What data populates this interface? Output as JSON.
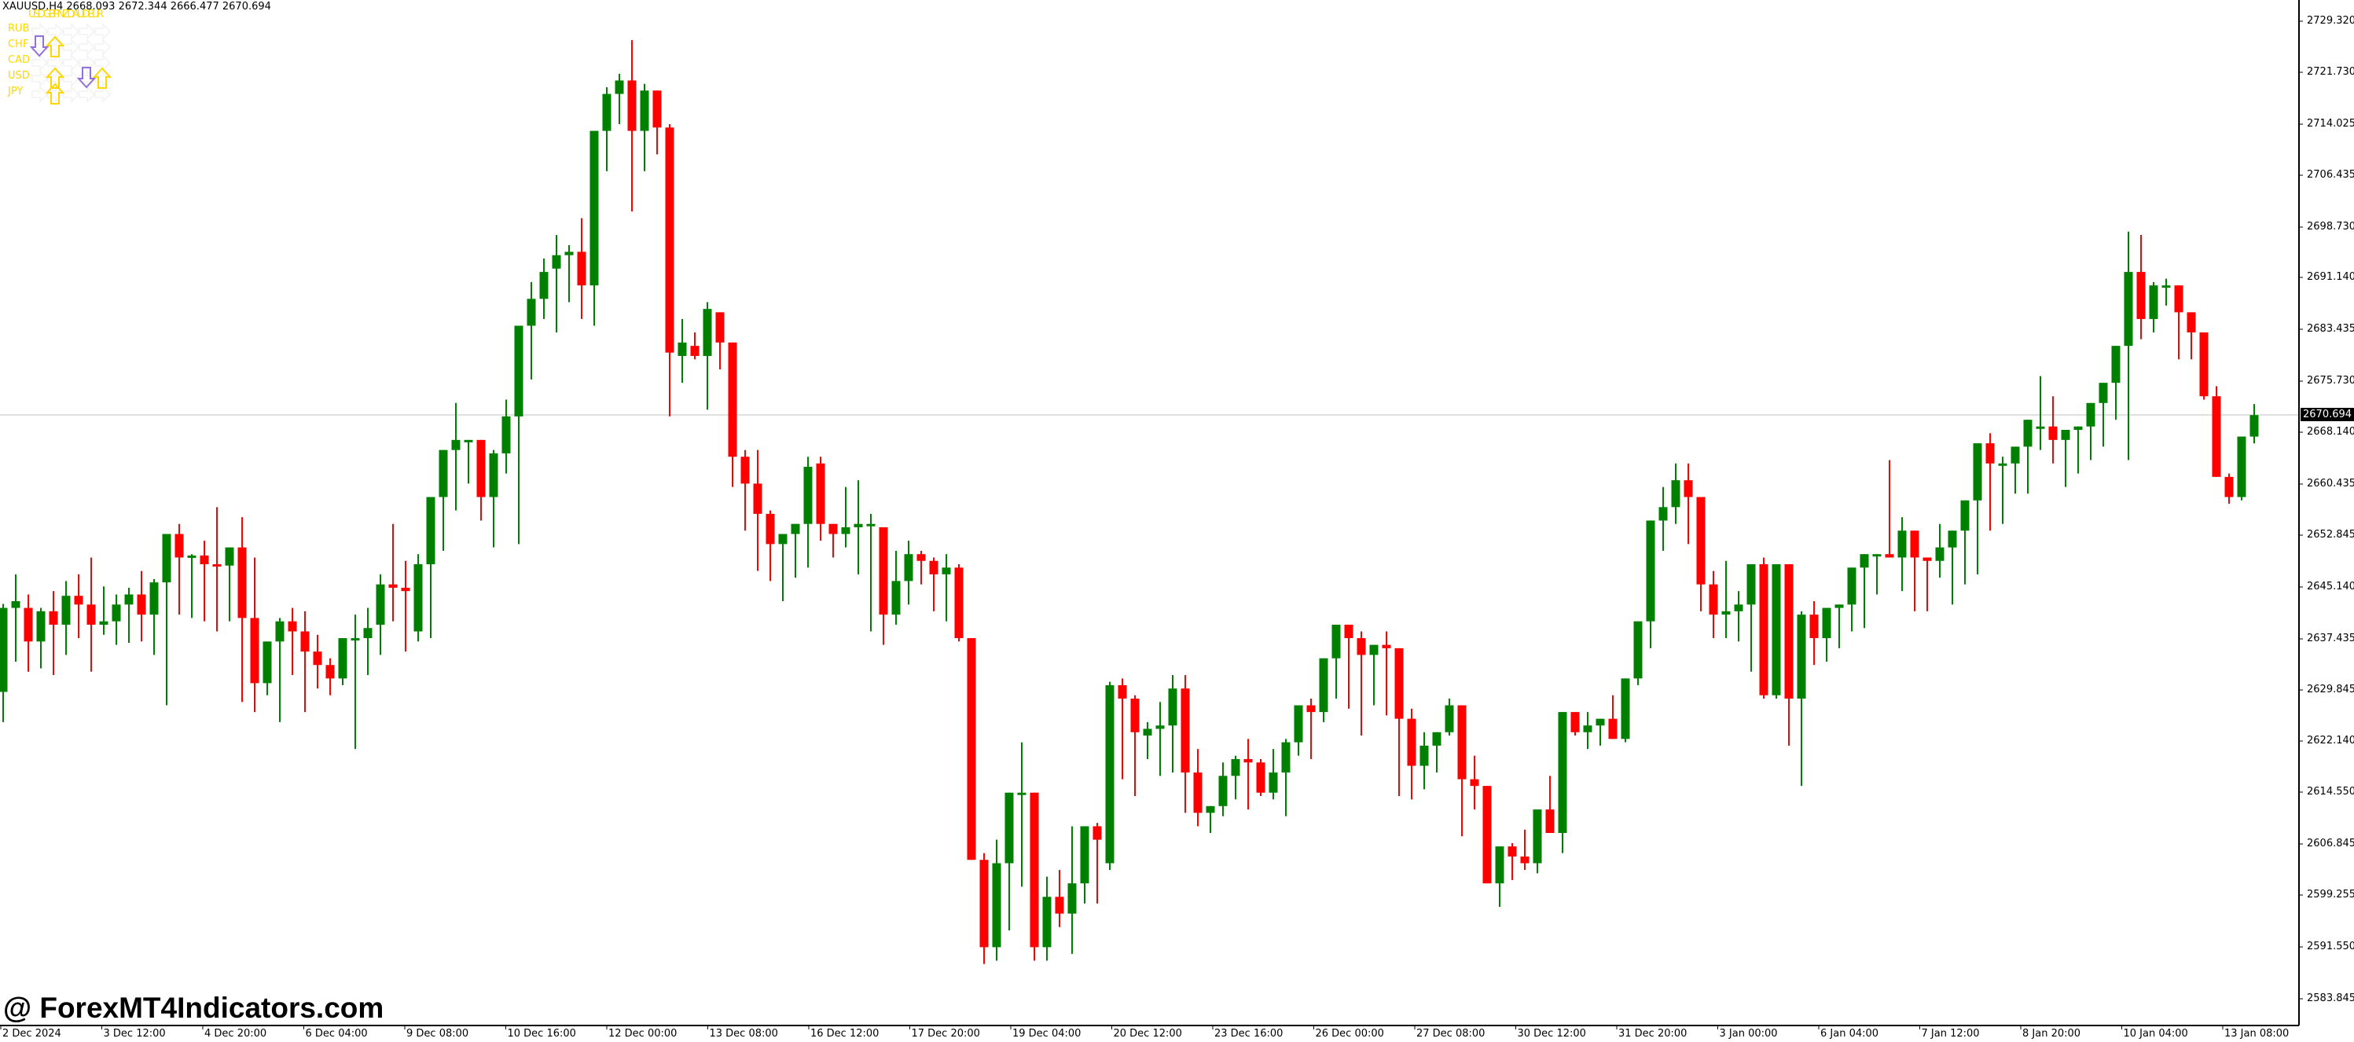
{
  "window": {
    "symbol": "XAUUSD",
    "timeframe": "H4",
    "header": "XAUUSD,H4  2668.093 2672.344 2666.477 2670.694",
    "ohlc": {
      "open": "2668.093",
      "high": "2672.344",
      "low": "2666.477",
      "close": "2670.694"
    }
  },
  "indicator": {
    "columns_label": "USDGBPNZDAUDEUR",
    "column_names": [
      "USD",
      "GBP",
      "NZD",
      "AUD",
      "EUR"
    ],
    "rows": [
      "RUB",
      "CHF",
      "CAD",
      "USD",
      "JPY"
    ],
    "up_color": "#ffd700",
    "down_color": "#9370db",
    "neutral_color": "#f2f2f2",
    "arrows": [
      {
        "row": 1,
        "col": 0,
        "dir": "down"
      },
      {
        "row": 1,
        "col": 1,
        "dir": "up"
      },
      {
        "row": 3,
        "col": 1,
        "dir": "up"
      },
      {
        "row": 3,
        "col": 3,
        "dir": "down"
      },
      {
        "row": 3,
        "col": 4,
        "dir": "up"
      },
      {
        "row": 4,
        "col": 1,
        "dir": "up"
      }
    ]
  },
  "watermark": "@ ForexMT4Indicators.com",
  "current_price": "2670.694",
  "colors": {
    "bull": "#008000",
    "bear": "#ff0000",
    "grid_line": "#c0c0c0",
    "axis": "#000000"
  },
  "price_axis": [
    "2729.320",
    "2721.730",
    "2714.025",
    "2706.435",
    "2698.730",
    "2691.140",
    "2683.435",
    "2675.730",
    "2668.140",
    "2660.435",
    "2652.845",
    "2645.140",
    "2637.435",
    "2629.845",
    "2622.140",
    "2614.550",
    "2606.845",
    "2599.255",
    "2591.550",
    "2583.845"
  ],
  "time_axis": [
    "2 Dec 2024",
    "3 Dec 12:00",
    "4 Dec 20:00",
    "6 Dec 04:00",
    "9 Dec 08:00",
    "10 Dec 16:00",
    "12 Dec 00:00",
    "13 Dec 08:00",
    "16 Dec 12:00",
    "17 Dec 20:00",
    "19 Dec 04:00",
    "20 Dec 12:00",
    "23 Dec 16:00",
    "26 Dec 00:00",
    "27 Dec 08:00",
    "30 Dec 12:00",
    "31 Dec 20:00",
    "3 Jan 00:00",
    "6 Jan 04:00",
    "7 Jan 12:00",
    "8 Jan 20:00",
    "10 Jan 04:00",
    "13 Jan 08:00"
  ],
  "chart_data": {
    "type": "candlestick",
    "title": "XAUUSD,H4",
    "xlabel": "",
    "ylabel": "",
    "ylim": [
      2580,
      2732
    ],
    "grid": false,
    "current_price_line": 2670.694,
    "x_ticks": [
      "2 Dec 2024",
      "3 Dec 12:00",
      "4 Dec 20:00",
      "6 Dec 04:00",
      "9 Dec 08:00",
      "10 Dec 16:00",
      "12 Dec 00:00",
      "13 Dec 08:00",
      "16 Dec 12:00",
      "17 Dec 20:00",
      "19 Dec 04:00",
      "20 Dec 12:00",
      "23 Dec 16:00",
      "26 Dec 00:00",
      "27 Dec 08:00",
      "30 Dec 12:00",
      "31 Dec 20:00",
      "3 Jan 00:00",
      "6 Jan 04:00",
      "7 Jan 12:00",
      "8 Jan 20:00",
      "10 Jan 04:00",
      "13 Jan 08:00"
    ],
    "y_ticks": [
      2729.32,
      2721.73,
      2714.025,
      2706.435,
      2698.73,
      2691.14,
      2683.435,
      2675.73,
      2668.14,
      2660.435,
      2652.845,
      2645.14,
      2637.435,
      2629.845,
      2622.14,
      2614.55,
      2606.845,
      2599.255,
      2591.55,
      2583.845
    ],
    "candles_ohlc": [
      [
        2628.8,
        2642.0,
        2622.0,
        2630.2
      ],
      [
        2629.5,
        2642.6,
        2625.0,
        2642.0
      ],
      [
        2642.0,
        2647.0,
        2634.0,
        2643.0
      ],
      [
        2642.0,
        2644.0,
        2632.5,
        2637.0
      ],
      [
        2637.0,
        2642.0,
        2633.0,
        2641.5
      ],
      [
        2641.5,
        2644.5,
        2632.0,
        2639.5
      ],
      [
        2639.5,
        2646.0,
        2635.0,
        2643.8
      ],
      [
        2643.8,
        2647.0,
        2637.5,
        2642.5
      ],
      [
        2642.5,
        2649.5,
        2632.5,
        2639.5
      ],
      [
        2639.5,
        2645.2,
        2638.0,
        2640.0
      ],
      [
        2640.0,
        2644.0,
        2636.5,
        2642.5
      ],
      [
        2642.5,
        2645.0,
        2636.8,
        2644.0
      ],
      [
        2644.0,
        2647.5,
        2637.0,
        2641.0
      ],
      [
        2641.0,
        2646.3,
        2635.0,
        2645.8
      ],
      [
        2645.8,
        2648.0,
        2627.5,
        2653.0
      ],
      [
        2653.0,
        2654.5,
        2641.0,
        2649.5
      ],
      [
        2649.5,
        2650.0,
        2640.5,
        2649.8
      ],
      [
        2649.8,
        2652.0,
        2640.0,
        2648.5
      ],
      [
        2648.5,
        2657.0,
        2638.5,
        2648.3
      ],
      [
        2648.3,
        2645.0,
        2640.0,
        2651.0
      ],
      [
        2651.0,
        2655.5,
        2628.0,
        2640.5
      ],
      [
        2640.5,
        2649.5,
        2626.5,
        2630.8
      ],
      [
        2630.8,
        2637.0,
        2629.0,
        2637.0
      ],
      [
        2637.0,
        2640.5,
        2625.0,
        2640.0
      ],
      [
        2640.0,
        2642.0,
        2632.0,
        2638.5
      ],
      [
        2638.5,
        2641.5,
        2626.5,
        2635.5
      ],
      [
        2635.5,
        2638.0,
        2630.0,
        2633.5
      ],
      [
        2633.5,
        2634.5,
        2629.0,
        2631.5
      ],
      [
        2631.5,
        2637.5,
        2630.5,
        2637.5
      ],
      [
        2637.5,
        2641.0,
        2621.0,
        2637.5
      ],
      [
        2637.5,
        2642.0,
        2632.0,
        2639.0
      ],
      [
        2639.5,
        2647.0,
        2635.0,
        2645.5
      ],
      [
        2645.5,
        2654.5,
        2640.0,
        2645.0
      ],
      [
        2645.0,
        2649.0,
        2635.5,
        2644.5
      ],
      [
        2638.5,
        2650.0,
        2637.0,
        2648.5
      ],
      [
        2648.5,
        2655.5,
        2637.5,
        2658.5
      ],
      [
        2658.5,
        2661.5,
        2650.5,
        2665.5
      ],
      [
        2665.5,
        2672.5,
        2656.5,
        2667.0
      ],
      [
        2667.0,
        2663.5,
        2660.5,
        2667.0
      ],
      [
        2667.0,
        2666.0,
        2655.0,
        2658.5
      ],
      [
        2658.5,
        2665.5,
        2651.0,
        2665.0
      ],
      [
        2665.0,
        2673.0,
        2662.0,
        2670.5
      ],
      [
        2670.5,
        2672.5,
        2651.5,
        2684.0
      ],
      [
        2684.0,
        2690.5,
        2676.0,
        2688.0
      ],
      [
        2688.0,
        2694.0,
        2685.0,
        2692.0
      ],
      [
        2692.5,
        2697.5,
        2683.0,
        2694.5
      ],
      [
        2694.5,
        2696.0,
        2687.5,
        2695.0
      ],
      [
        2695.0,
        2700.0,
        2685.0,
        2690.0
      ],
      [
        2690.0,
        2709.0,
        2684.0,
        2713.0
      ],
      [
        2713.0,
        2719.5,
        2707.0,
        2718.5
      ],
      [
        2718.5,
        2721.5,
        2714.0,
        2720.5
      ],
      [
        2720.5,
        2726.5,
        2701.0,
        2713.0
      ],
      [
        2713.0,
        2720.0,
        2707.0,
        2719.0
      ],
      [
        2719.0,
        2718.0,
        2709.5,
        2713.5
      ],
      [
        2713.5,
        2714.0,
        2670.5,
        2680.0
      ],
      [
        2679.5,
        2685.0,
        2675.5,
        2681.5
      ],
      [
        2681.0,
        2683.0,
        2679.0,
        2679.5
      ],
      [
        2679.5,
        2687.5,
        2671.5,
        2686.5
      ],
      [
        2686.0,
        2685.5,
        2677.5,
        2681.5
      ],
      [
        2681.5,
        2680.5,
        2660.0,
        2664.5
      ],
      [
        2664.5,
        2665.5,
        2653.5,
        2660.5
      ],
      [
        2660.5,
        2665.5,
        2647.5,
        2656.0
      ],
      [
        2656.0,
        2656.5,
        2646.0,
        2651.5
      ],
      [
        2651.5,
        2653.0,
        2643.0,
        2653.0
      ],
      [
        2653.0,
        2654.0,
        2646.5,
        2654.5
      ],
      [
        2654.5,
        2664.5,
        2648.0,
        2663.0
      ],
      [
        2663.5,
        2664.5,
        2652.0,
        2654.5
      ],
      [
        2654.5,
        2654.5,
        2649.5,
        2653.0
      ],
      [
        2653.0,
        2660.0,
        2651.0,
        2654.0
      ],
      [
        2654.0,
        2661.0,
        2647.0,
        2654.5
      ],
      [
        2654.5,
        2656.0,
        2638.5,
        2654.5
      ],
      [
        2654.0,
        2654.0,
        2636.5,
        2641.0
      ],
      [
        2641.0,
        2650.5,
        2639.5,
        2646.0
      ],
      [
        2646.0,
        2652.0,
        2642.5,
        2650.0
      ],
      [
        2650.0,
        2650.5,
        2645.5,
        2649.0
      ],
      [
        2649.0,
        2649.5,
        2641.5,
        2647.0
      ],
      [
        2647.0,
        2650.0,
        2640.0,
        2648.0
      ],
      [
        2648.0,
        2648.5,
        2637.0,
        2637.5
      ],
      [
        2637.5,
        2636.0,
        2608.0,
        2604.5
      ],
      [
        2604.5,
        2605.5,
        2589.0,
        2591.5
      ],
      [
        2591.5,
        2607.5,
        2589.5,
        2604.0
      ],
      [
        2604.0,
        2614.5,
        2594.0,
        2614.5
      ],
      [
        2614.5,
        2622.0,
        2600.5,
        2614.5
      ],
      [
        2614.5,
        2614.5,
        2589.5,
        2591.5
      ],
      [
        2591.5,
        2602.0,
        2589.5,
        2599.0
      ],
      [
        2599.0,
        2603.0,
        2594.5,
        2596.5
      ],
      [
        2596.5,
        2609.5,
        2590.5,
        2601.0
      ],
      [
        2601.0,
        2606.5,
        2598.0,
        2609.5
      ],
      [
        2609.5,
        2610.0,
        2598.0,
        2607.5
      ],
      [
        2604.0,
        2631.0,
        2603.0,
        2630.5
      ],
      [
        2630.5,
        2631.5,
        2616.5,
        2628.5
      ],
      [
        2628.5,
        2629.0,
        2614.0,
        2623.5
      ],
      [
        2623.0,
        2625.0,
        2619.5,
        2624.0
      ],
      [
        2624.0,
        2628.0,
        2617.0,
        2624.5
      ],
      [
        2624.5,
        2632.0,
        2617.5,
        2630.0
      ],
      [
        2630.0,
        2632.0,
        2611.5,
        2617.5
      ],
      [
        2617.5,
        2621.0,
        2609.5,
        2611.5
      ],
      [
        2611.5,
        2612.5,
        2608.5,
        2612.5
      ],
      [
        2612.5,
        2619.0,
        2611.0,
        2617.0
      ],
      [
        2617.0,
        2620.0,
        2613.5,
        2619.5
      ],
      [
        2619.5,
        2622.5,
        2612.0,
        2619.0
      ],
      [
        2619.0,
        2619.5,
        2614.0,
        2614.5
      ],
      [
        2614.5,
        2621.0,
        2613.5,
        2617.5
      ],
      [
        2617.5,
        2622.5,
        2611.0,
        2622.0
      ],
      [
        2622.0,
        2626.5,
        2620.0,
        2627.5
      ],
      [
        2627.5,
        2628.5,
        2619.5,
        2626.5
      ],
      [
        2626.5,
        2631.0,
        2625.0,
        2634.5
      ],
      [
        2634.5,
        2639.5,
        2628.5,
        2639.5
      ],
      [
        2639.5,
        2638.5,
        2627.0,
        2637.5
      ],
      [
        2637.5,
        2638.5,
        2623.0,
        2635.0
      ],
      [
        2635.0,
        2636.5,
        2627.5,
        2636.5
      ],
      [
        2636.5,
        2638.5,
        2626.0,
        2636.0
      ],
      [
        2636.0,
        2635.5,
        2614.0,
        2625.5
      ],
      [
        2625.5,
        2627.0,
        2613.5,
        2618.5
      ],
      [
        2618.5,
        2623.5,
        2615.0,
        2621.5
      ],
      [
        2621.5,
        2623.5,
        2617.5,
        2623.5
      ],
      [
        2623.5,
        2628.5,
        2623.0,
        2627.5
      ],
      [
        2627.5,
        2627.0,
        2608.0,
        2616.5
      ],
      [
        2616.5,
        2620.0,
        2612.0,
        2615.5
      ],
      [
        2615.5,
        2615.5,
        2602.0,
        2601.0
      ],
      [
        2601.0,
        2606.0,
        2597.5,
        2606.5
      ],
      [
        2606.5,
        2607.0,
        2601.5,
        2605.0
      ],
      [
        2605.0,
        2609.0,
        2603.0,
        2604.0
      ],
      [
        2604.0,
        2612.0,
        2602.5,
        2612.0
      ],
      [
        2612.0,
        2617.0,
        2609.0,
        2608.5
      ],
      [
        2608.5,
        2617.5,
        2605.5,
        2626.5
      ],
      [
        2626.5,
        2626.5,
        2623.0,
        2623.5
      ],
      [
        2623.5,
        2626.5,
        2621.0,
        2624.5
      ],
      [
        2624.5,
        2625.0,
        2621.5,
        2625.5
      ],
      [
        2625.5,
        2629.0,
        2622.5,
        2622.5
      ],
      [
        2622.5,
        2631.0,
        2622.0,
        2631.5
      ],
      [
        2631.5,
        2638.0,
        2630.5,
        2640.0
      ],
      [
        2640.0,
        2647.5,
        2636.0,
        2655.0
      ],
      [
        2655.0,
        2660.0,
        2650.5,
        2657.0
      ],
      [
        2657.0,
        2663.5,
        2654.5,
        2661.0
      ],
      [
        2661.0,
        2663.5,
        2651.5,
        2658.5
      ],
      [
        2658.5,
        2658.5,
        2641.5,
        2645.5
      ],
      [
        2645.5,
        2647.5,
        2637.5,
        2641.0
      ],
      [
        2641.0,
        2649.0,
        2637.5,
        2641.5
      ],
      [
        2641.5,
        2644.5,
        2637.0,
        2642.5
      ],
      [
        2642.5,
        2643.5,
        2632.5,
        2648.5
      ],
      [
        2648.5,
        2649.5,
        2628.5,
        2629.0
      ],
      [
        2629.0,
        2646.0,
        2628.5,
        2648.5
      ],
      [
        2648.5,
        2648.5,
        2621.5,
        2628.5
      ],
      [
        2628.5,
        2641.5,
        2615.5,
        2641.0
      ],
      [
        2641.0,
        2643.0,
        2633.5,
        2637.5
      ],
      [
        2637.5,
        2642.0,
        2634.0,
        2642.0
      ],
      [
        2642.0,
        2642.5,
        2636.0,
        2642.5
      ],
      [
        2642.5,
        2645.5,
        2638.5,
        2648.0
      ],
      [
        2648.0,
        2649.0,
        2639.0,
        2650.0
      ],
      [
        2650.0,
        2649.5,
        2644.0,
        2650.0
      ],
      [
        2650.0,
        2664.0,
        2649.5,
        2649.5
      ],
      [
        2649.5,
        2655.5,
        2644.5,
        2653.5
      ],
      [
        2653.5,
        2653.5,
        2641.5,
        2649.5
      ],
      [
        2649.5,
        2649.0,
        2641.5,
        2649.0
      ],
      [
        2649.0,
        2654.5,
        2646.5,
        2651.0
      ],
      [
        2651.0,
        2652.5,
        2642.5,
        2653.5
      ],
      [
        2653.5,
        2657.5,
        2645.5,
        2658.0
      ],
      [
        2658.0,
        2659.0,
        2647.0,
        2666.5
      ],
      [
        2666.5,
        2668.0,
        2653.5,
        2663.5
      ],
      [
        2663.5,
        2664.5,
        2654.5,
        2663.5
      ],
      [
        2663.5,
        2665.0,
        2659.0,
        2666.0
      ],
      [
        2666.0,
        2670.0,
        2659.0,
        2670.0
      ],
      [
        2669.0,
        2676.5,
        2665.5,
        2669.0
      ],
      [
        2669.0,
        2673.5,
        2663.5,
        2667.0
      ],
      [
        2667.0,
        2666.5,
        2660.0,
        2668.5
      ],
      [
        2668.5,
        2669.0,
        2662.0,
        2669.0
      ],
      [
        2669.0,
        2672.0,
        2664.0,
        2672.5
      ],
      [
        2672.5,
        2675.5,
        2666.0,
        2675.5
      ],
      [
        2675.5,
        2680.0,
        2670.0,
        2681.0
      ],
      [
        2681.0,
        2698.0,
        2664.0,
        2692.0
      ],
      [
        2692.0,
        2697.5,
        2682.0,
        2685.0
      ],
      [
        2685.0,
        2690.5,
        2683.0,
        2690.0
      ],
      [
        2690.0,
        2691.0,
        2687.0,
        2690.0
      ],
      [
        2690.0,
        2688.5,
        2679.0,
        2686.0
      ],
      [
        2686.0,
        2685.5,
        2679.0,
        2683.0
      ],
      [
        2683.0,
        2683.0,
        2673.0,
        2673.5
      ],
      [
        2673.5,
        2675.0,
        2662.5,
        2661.5
      ],
      [
        2661.5,
        2662.0,
        2657.5,
        2658.5
      ],
      [
        2658.5,
        2666.5,
        2658.0,
        2667.5
      ],
      [
        2667.5,
        2672.344,
        2666.477,
        2670.694
      ]
    ]
  }
}
